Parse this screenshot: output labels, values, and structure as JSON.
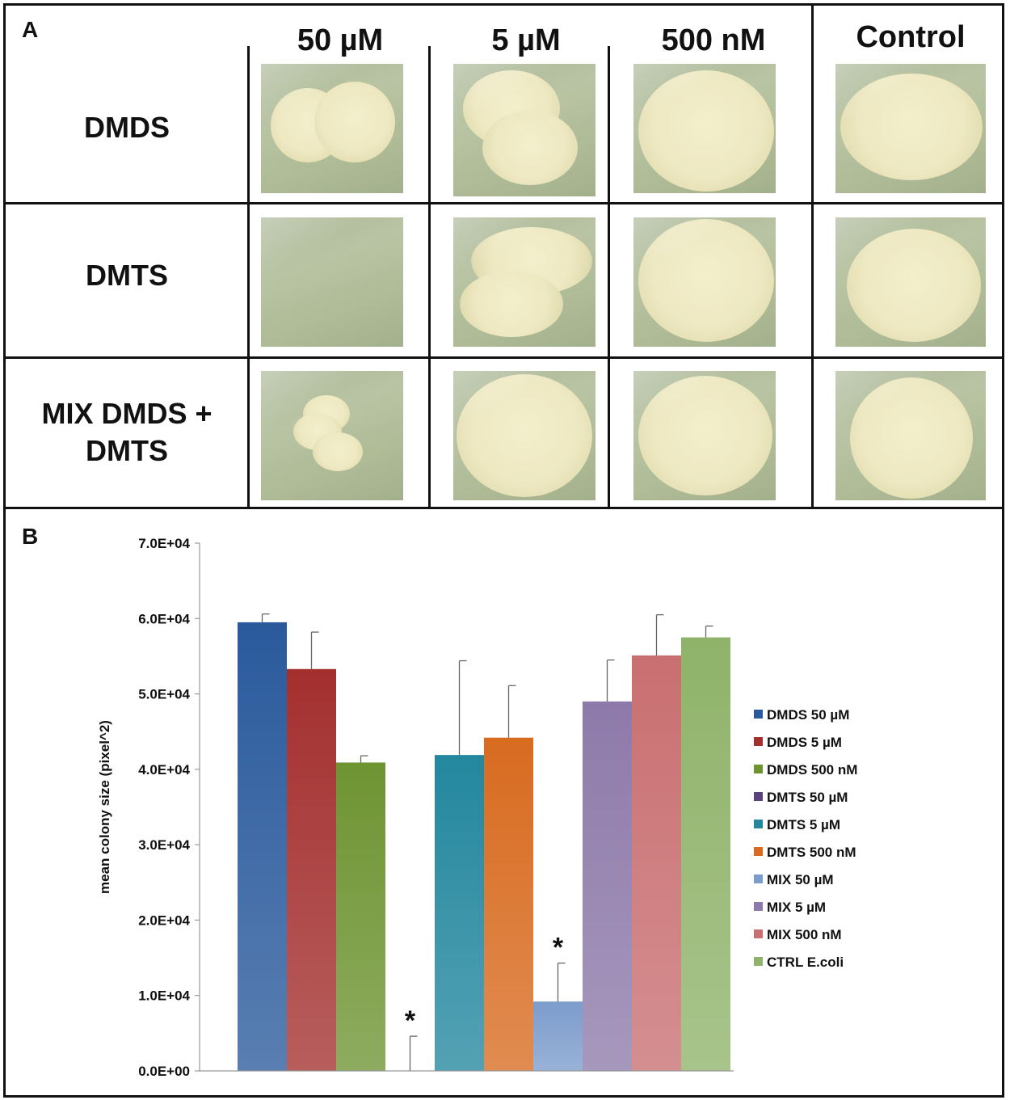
{
  "panel_a": {
    "letter": "A",
    "columns": [
      "50 µM",
      "5 µM",
      "500 nM",
      "Control"
    ],
    "rows": [
      {
        "label_lines": [
          "DMDS"
        ]
      },
      {
        "label_lines": [
          "DMTS"
        ]
      },
      {
        "label_lines": [
          "MIX DMDS +",
          "DMTS"
        ]
      }
    ]
  },
  "panel_b": {
    "letter": "B"
  },
  "chart_data": {
    "type": "bar",
    "ylabel": "mean colony size (pixel^2)",
    "xlabel": "",
    "ylim": [
      0,
      70000
    ],
    "yticks": [
      "0.0E+00",
      "1.0E+04",
      "2.0E+04",
      "3.0E+04",
      "4.0E+04",
      "5.0E+04",
      "6.0E+04",
      "7.0E+04"
    ],
    "grid": false,
    "legend_position": "right",
    "series": [
      {
        "name": "DMDS 50 µM",
        "value": 59500,
        "error": 1100,
        "color": "#2a5a9c",
        "sig": ""
      },
      {
        "name": "DMDS 5 µM",
        "value": 53300,
        "error": 4900,
        "color": "#a3302f",
        "sig": ""
      },
      {
        "name": "DMDS 500 nM",
        "value": 40900,
        "error": 900,
        "color": "#6e9432",
        "sig": ""
      },
      {
        "name": "DMTS 50 µM",
        "value": 0,
        "error": 4600,
        "color": "#5a427e",
        "sig": "*"
      },
      {
        "name": "DMTS 5 µM",
        "value": 41900,
        "error": 12500,
        "color": "#23879e",
        "sig": ""
      },
      {
        "name": "DMTS 500 nM",
        "value": 44200,
        "error": 6900,
        "color": "#d86b20",
        "sig": ""
      },
      {
        "name": "MIX 50 µM",
        "value": 9200,
        "error": 5100,
        "color": "#7c9ccc",
        "sig": "*"
      },
      {
        "name": "MIX 5 µM",
        "value": 49000,
        "error": 5500,
        "color": "#8e7aaa",
        "sig": ""
      },
      {
        "name": "MIX 500 nM",
        "value": 55100,
        "error": 5400,
        "color": "#c96f71",
        "sig": ""
      },
      {
        "name": "CTRL E.coli",
        "value": 57500,
        "error": 1500,
        "color": "#8fb36a",
        "sig": ""
      }
    ]
  }
}
